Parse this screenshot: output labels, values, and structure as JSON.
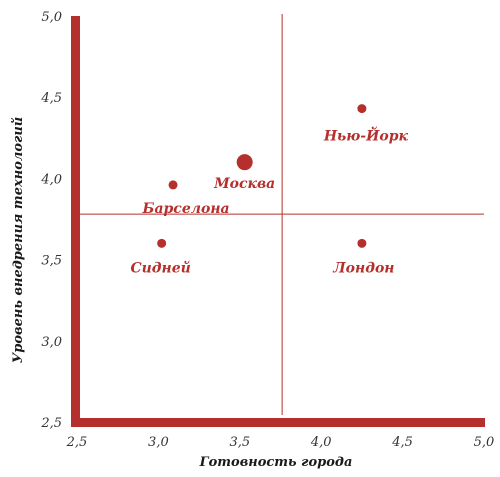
{
  "chart_data": {
    "type": "scatter",
    "title": "",
    "xlabel": "Готовность города",
    "ylabel": "Уровень внедрения технологий",
    "xlim": [
      2.5,
      5.0
    ],
    "ylim": [
      2.5,
      5.0
    ],
    "x_ticks": [
      "2,5",
      "3,0",
      "3,5",
      "4,0",
      "4,5",
      "5,0"
    ],
    "y_ticks": [
      "2,5",
      "3,0",
      "3,5",
      "4,0",
      "4,5",
      "5,0"
    ],
    "reference_lines": {
      "x": 3.76,
      "y": 3.78
    },
    "grid": false,
    "legend": "none",
    "points": [
      {
        "label": "Нью-Йорк",
        "x": 4.25,
        "y": 4.43,
        "highlight": false
      },
      {
        "label": "Москва",
        "x": 3.53,
        "y": 4.1,
        "highlight": true
      },
      {
        "label": "Барселона",
        "x": 3.09,
        "y": 3.96,
        "highlight": false
      },
      {
        "label": "Сидней",
        "x": 3.02,
        "y": 3.6,
        "highlight": false
      },
      {
        "label": "Лондон",
        "x": 4.25,
        "y": 3.6,
        "highlight": false
      }
    ],
    "colors": {
      "accent": "#b5302d",
      "text": "#333333"
    }
  }
}
